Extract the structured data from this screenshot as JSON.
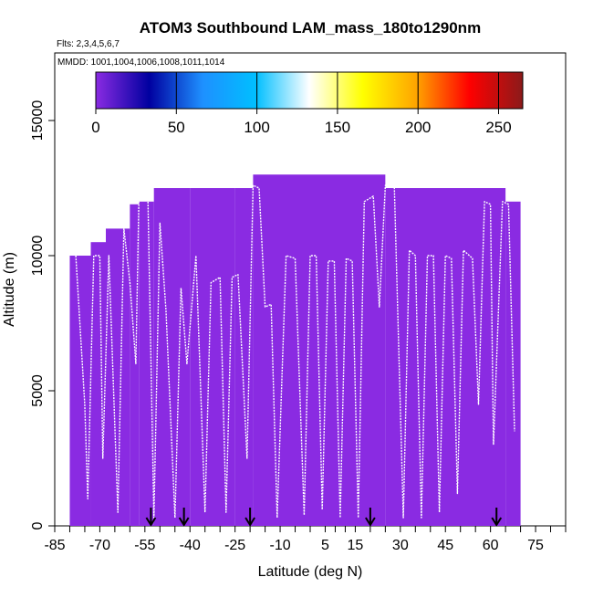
{
  "chart_data": {
    "type": "heatmap",
    "title": "ATOM3 Southbound LAM_mass_180to1290nm",
    "flights_note": "Flts: 2,3,4,5,6,7",
    "dates_note": "MMDD: 1001,1004,1006,1008,1011,1014",
    "xlabel": "Latitude (deg N)",
    "ylabel": "Altitude (m)",
    "xlim": [
      -85,
      85
    ],
    "ylim": [
      0,
      17500
    ],
    "x_ticks": [
      -85,
      -70,
      -55,
      -40,
      -25,
      -10,
      5,
      15,
      30,
      45,
      60,
      75
    ],
    "x_tick_labels": [
      "-85",
      "-70",
      "-55",
      "-40",
      "-25",
      "-10",
      "5",
      "15",
      "30",
      "45",
      "60",
      "75"
    ],
    "y_ticks": [
      0,
      5000,
      10000,
      15000
    ],
    "y_tick_labels": [
      "0",
      "5000",
      "10000",
      "15000"
    ],
    "colorbar": {
      "min": 0,
      "max": 265,
      "ticks": [
        0,
        50,
        100,
        150,
        200,
        250
      ],
      "tick_labels": [
        "0",
        "50",
        "100",
        "150",
        "200",
        "250"
      ],
      "colors": [
        "#8a2be2",
        "#0000a0",
        "#1e90ff",
        "#00bfff",
        "#ffffff",
        "#ffff00",
        "#ffa500",
        "#ff0000",
        "#8b1a1a"
      ]
    },
    "curtain_fill_color": "#8a2be2",
    "curtain_blocks": [
      {
        "lat_start": -80,
        "lat_end": -73,
        "alt_top": 10000
      },
      {
        "lat_start": -73,
        "lat_end": -68,
        "alt_top": 10500
      },
      {
        "lat_start": -68,
        "lat_end": -60,
        "alt_top": 11000
      },
      {
        "lat_start": -60,
        "lat_end": -57,
        "alt_top": 11900
      },
      {
        "lat_start": -57,
        "lat_end": -52,
        "alt_top": 12000
      },
      {
        "lat_start": -52,
        "lat_end": -40,
        "alt_top": 12500
      },
      {
        "lat_start": -40,
        "lat_end": -25,
        "alt_top": 12500
      },
      {
        "lat_start": -25,
        "lat_end": -19,
        "alt_top": 12500
      },
      {
        "lat_start": -19,
        "lat_end": 25,
        "alt_top": 13000
      },
      {
        "lat_start": 25,
        "lat_end": 65,
        "alt_top": 12500
      },
      {
        "lat_start": 65,
        "lat_end": 70,
        "alt_top": 12000
      }
    ],
    "flight_track": [
      [
        -78,
        10000
      ],
      [
        -75,
        4500
      ],
      [
        -74,
        1000
      ],
      [
        -72,
        10000
      ],
      [
        -70,
        10000
      ],
      [
        -69,
        2500
      ],
      [
        -67,
        10000
      ],
      [
        -64,
        500
      ],
      [
        -62,
        11000
      ],
      [
        -60,
        9000
      ],
      [
        -58,
        6000
      ],
      [
        -57,
        12000
      ],
      [
        -54,
        12200
      ],
      [
        -52,
        300
      ],
      [
        -50,
        11200
      ],
      [
        -48,
        8000
      ],
      [
        -45,
        300
      ],
      [
        -43,
        8800
      ],
      [
        -41,
        6000
      ],
      [
        -38,
        10000
      ],
      [
        -35,
        500
      ],
      [
        -33,
        9000
      ],
      [
        -30,
        9200
      ],
      [
        -28,
        500
      ],
      [
        -26,
        9200
      ],
      [
        -24,
        9300
      ],
      [
        -21,
        2500
      ],
      [
        -19,
        12600
      ],
      [
        -17,
        12500
      ],
      [
        -15,
        8100
      ],
      [
        -13,
        8200
      ],
      [
        -11,
        300
      ],
      [
        -8,
        10000
      ],
      [
        -5,
        9900
      ],
      [
        -2,
        400
      ],
      [
        0,
        10000
      ],
      [
        2,
        10000
      ],
      [
        4,
        600
      ],
      [
        6,
        9800
      ],
      [
        8,
        9800
      ],
      [
        10,
        300
      ],
      [
        12,
        9900
      ],
      [
        14,
        9800
      ],
      [
        16,
        300
      ],
      [
        18,
        12000
      ],
      [
        21,
        12200
      ],
      [
        23,
        8100
      ],
      [
        25,
        12600
      ],
      [
        28,
        12600
      ],
      [
        31,
        300
      ],
      [
        33,
        10200
      ],
      [
        35,
        10000
      ],
      [
        37,
        300
      ],
      [
        39,
        10000
      ],
      [
        41,
        10000
      ],
      [
        43,
        500
      ],
      [
        45,
        10000
      ],
      [
        47,
        9900
      ],
      [
        49,
        1200
      ],
      [
        51,
        10200
      ],
      [
        54,
        9900
      ],
      [
        56,
        4500
      ],
      [
        58,
        12000
      ],
      [
        60,
        11900
      ],
      [
        61,
        3000
      ],
      [
        64,
        12000
      ],
      [
        66,
        11900
      ],
      [
        68,
        3500
      ]
    ],
    "arrow_latitudes": [
      -53,
      -42,
      -20,
      20,
      62
    ]
  }
}
